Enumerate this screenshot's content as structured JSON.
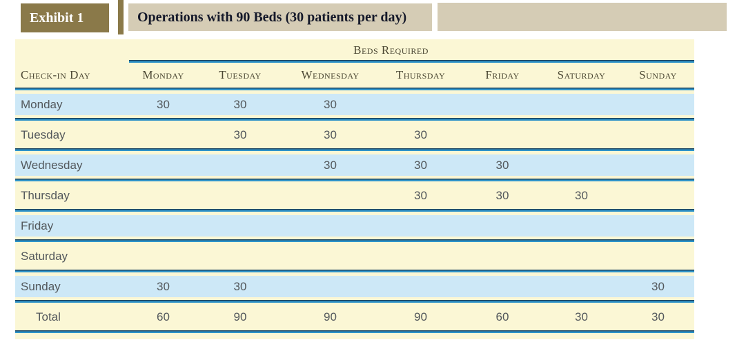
{
  "exhibit": {
    "label": "Exhibit 1",
    "title": "Operations with 90 Beds (30 patients per day)"
  },
  "table": {
    "spanner": "Beds Required",
    "row_header": "Check-in Day",
    "columns": [
      "Monday",
      "Tuesday",
      "Wednesday",
      "Thursday",
      "Friday",
      "Saturday",
      "Sunday"
    ],
    "rows": [
      {
        "label": "Monday",
        "values": [
          "30",
          "30",
          "30",
          "",
          "",
          "",
          ""
        ]
      },
      {
        "label": "Tuesday",
        "values": [
          "",
          "30",
          "30",
          "30",
          "",
          "",
          ""
        ]
      },
      {
        "label": "Wednesday",
        "values": [
          "",
          "",
          "30",
          "30",
          "30",
          "",
          ""
        ]
      },
      {
        "label": "Thursday",
        "values": [
          "",
          "",
          "",
          "30",
          "30",
          "30",
          ""
        ]
      },
      {
        "label": "Friday",
        "values": [
          "",
          "",
          "",
          "",
          "",
          "",
          ""
        ]
      },
      {
        "label": "Saturday",
        "values": [
          "",
          "",
          "",
          "",
          "",
          "",
          ""
        ]
      },
      {
        "label": "Sunday",
        "values": [
          "30",
          "30",
          "",
          "",
          "",
          "",
          "30"
        ]
      }
    ],
    "total": {
      "label": "Total",
      "values": [
        "60",
        "90",
        "90",
        "90",
        "60",
        "30",
        "30"
      ]
    }
  },
  "colors": {
    "badge_olive": "#8a7949",
    "title_tan": "#d5ccb5",
    "sheet_cream": "#fbf7d5",
    "band_blue": "#cde8f7",
    "rule_blue": "#2e93c9",
    "rule_navy": "#1d4560",
    "heading_text": "#4b4733",
    "body_text": "#53585c"
  }
}
